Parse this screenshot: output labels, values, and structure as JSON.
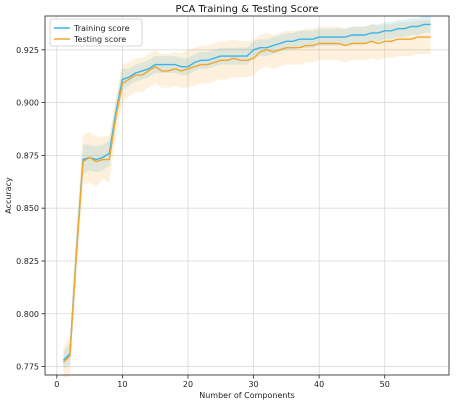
{
  "chart_data": {
    "type": "line",
    "title": "PCA Training & Testing Score",
    "xlabel": "Number of Components",
    "ylabel": "Accuracy",
    "xlim": [
      -1.8,
      59.8
    ],
    "ylim": [
      0.771,
      0.941
    ],
    "xticks": [
      0,
      10,
      20,
      30,
      40,
      50
    ],
    "yticks": [
      0.775,
      0.8,
      0.825,
      0.85,
      0.875,
      0.9,
      0.925
    ],
    "ytick_labels": [
      "0.775",
      "0.800",
      "0.825",
      "0.850",
      "0.875",
      "0.900",
      "0.925"
    ],
    "grid": true,
    "legend_position": "top-left",
    "x": [
      1,
      2,
      3,
      4,
      5,
      6,
      7,
      8,
      9,
      10,
      11,
      12,
      13,
      14,
      15,
      16,
      17,
      18,
      19,
      20,
      21,
      22,
      23,
      24,
      25,
      26,
      27,
      28,
      29,
      30,
      31,
      32,
      33,
      34,
      35,
      36,
      37,
      38,
      39,
      40,
      41,
      42,
      43,
      44,
      45,
      46,
      47,
      48,
      49,
      50,
      51,
      52,
      53,
      54,
      55,
      56,
      57
    ],
    "series": [
      {
        "name": "Training score",
        "color": "#3cb4e6",
        "values": [
          0.778,
          0.781,
          0.83,
          0.873,
          0.874,
          0.873,
          0.874,
          0.876,
          0.895,
          0.911,
          0.912,
          0.914,
          0.915,
          0.916,
          0.918,
          0.918,
          0.918,
          0.918,
          0.917,
          0.917,
          0.919,
          0.92,
          0.92,
          0.921,
          0.922,
          0.922,
          0.922,
          0.922,
          0.922,
          0.925,
          0.926,
          0.926,
          0.927,
          0.928,
          0.929,
          0.929,
          0.93,
          0.93,
          0.93,
          0.931,
          0.931,
          0.931,
          0.931,
          0.931,
          0.932,
          0.932,
          0.932,
          0.933,
          0.933,
          0.934,
          0.934,
          0.935,
          0.935,
          0.936,
          0.936,
          0.937,
          0.937
        ],
        "band_lower": [
          0.774,
          0.776,
          0.824,
          0.866,
          0.868,
          0.867,
          0.868,
          0.87,
          0.89,
          0.906,
          0.908,
          0.91,
          0.911,
          0.912,
          0.914,
          0.914,
          0.914,
          0.914,
          0.913,
          0.913,
          0.915,
          0.916,
          0.916,
          0.917,
          0.918,
          0.918,
          0.918,
          0.918,
          0.918,
          0.921,
          0.922,
          0.922,
          0.923,
          0.924,
          0.925,
          0.925,
          0.926,
          0.926,
          0.926,
          0.927,
          0.927,
          0.927,
          0.927,
          0.927,
          0.928,
          0.928,
          0.928,
          0.929,
          0.929,
          0.93,
          0.93,
          0.931,
          0.931,
          0.932,
          0.932,
          0.933,
          0.933
        ],
        "band_upper": [
          0.782,
          0.786,
          0.836,
          0.88,
          0.88,
          0.879,
          0.88,
          0.882,
          0.9,
          0.916,
          0.916,
          0.918,
          0.919,
          0.92,
          0.922,
          0.922,
          0.922,
          0.922,
          0.921,
          0.921,
          0.923,
          0.924,
          0.924,
          0.925,
          0.926,
          0.926,
          0.926,
          0.926,
          0.926,
          0.929,
          0.93,
          0.93,
          0.931,
          0.932,
          0.933,
          0.933,
          0.934,
          0.934,
          0.934,
          0.935,
          0.935,
          0.935,
          0.935,
          0.935,
          0.936,
          0.936,
          0.936,
          0.937,
          0.937,
          0.938,
          0.938,
          0.939,
          0.939,
          0.94,
          0.94,
          0.941,
          0.941
        ]
      },
      {
        "name": "Testing score",
        "color": "#f0a630",
        "values": [
          0.777,
          0.78,
          0.829,
          0.872,
          0.874,
          0.872,
          0.873,
          0.873,
          0.893,
          0.909,
          0.911,
          0.913,
          0.913,
          0.915,
          0.917,
          0.915,
          0.915,
          0.916,
          0.915,
          0.916,
          0.917,
          0.918,
          0.918,
          0.919,
          0.92,
          0.92,
          0.921,
          0.92,
          0.92,
          0.921,
          0.924,
          0.925,
          0.924,
          0.925,
          0.926,
          0.926,
          0.926,
          0.927,
          0.927,
          0.928,
          0.928,
          0.928,
          0.928,
          0.927,
          0.928,
          0.928,
          0.928,
          0.929,
          0.928,
          0.929,
          0.929,
          0.93,
          0.93,
          0.93,
          0.931,
          0.931,
          0.931
        ],
        "band_lower": [
          0.77,
          0.77,
          0.816,
          0.861,
          0.862,
          0.86,
          0.864,
          0.862,
          0.884,
          0.9,
          0.903,
          0.905,
          0.905,
          0.907,
          0.909,
          0.907,
          0.907,
          0.908,
          0.907,
          0.907,
          0.908,
          0.909,
          0.909,
          0.91,
          0.911,
          0.911,
          0.912,
          0.912,
          0.912,
          0.913,
          0.916,
          0.917,
          0.916,
          0.917,
          0.918,
          0.918,
          0.918,
          0.919,
          0.919,
          0.92,
          0.92,
          0.92,
          0.92,
          0.919,
          0.92,
          0.92,
          0.92,
          0.921,
          0.92,
          0.921,
          0.921,
          0.922,
          0.922,
          0.922,
          0.923,
          0.923,
          0.923
        ],
        "band_upper": [
          0.784,
          0.79,
          0.842,
          0.885,
          0.886,
          0.884,
          0.884,
          0.884,
          0.902,
          0.918,
          0.919,
          0.921,
          0.921,
          0.923,
          0.925,
          0.923,
          0.923,
          0.924,
          0.923,
          0.925,
          0.926,
          0.927,
          0.927,
          0.928,
          0.929,
          0.929,
          0.93,
          0.929,
          0.929,
          0.93,
          0.932,
          0.933,
          0.932,
          0.933,
          0.934,
          0.934,
          0.934,
          0.935,
          0.935,
          0.936,
          0.936,
          0.936,
          0.936,
          0.935,
          0.936,
          0.936,
          0.936,
          0.937,
          0.936,
          0.937,
          0.937,
          0.938,
          0.938,
          0.938,
          0.939,
          0.939,
          0.939
        ]
      }
    ]
  }
}
